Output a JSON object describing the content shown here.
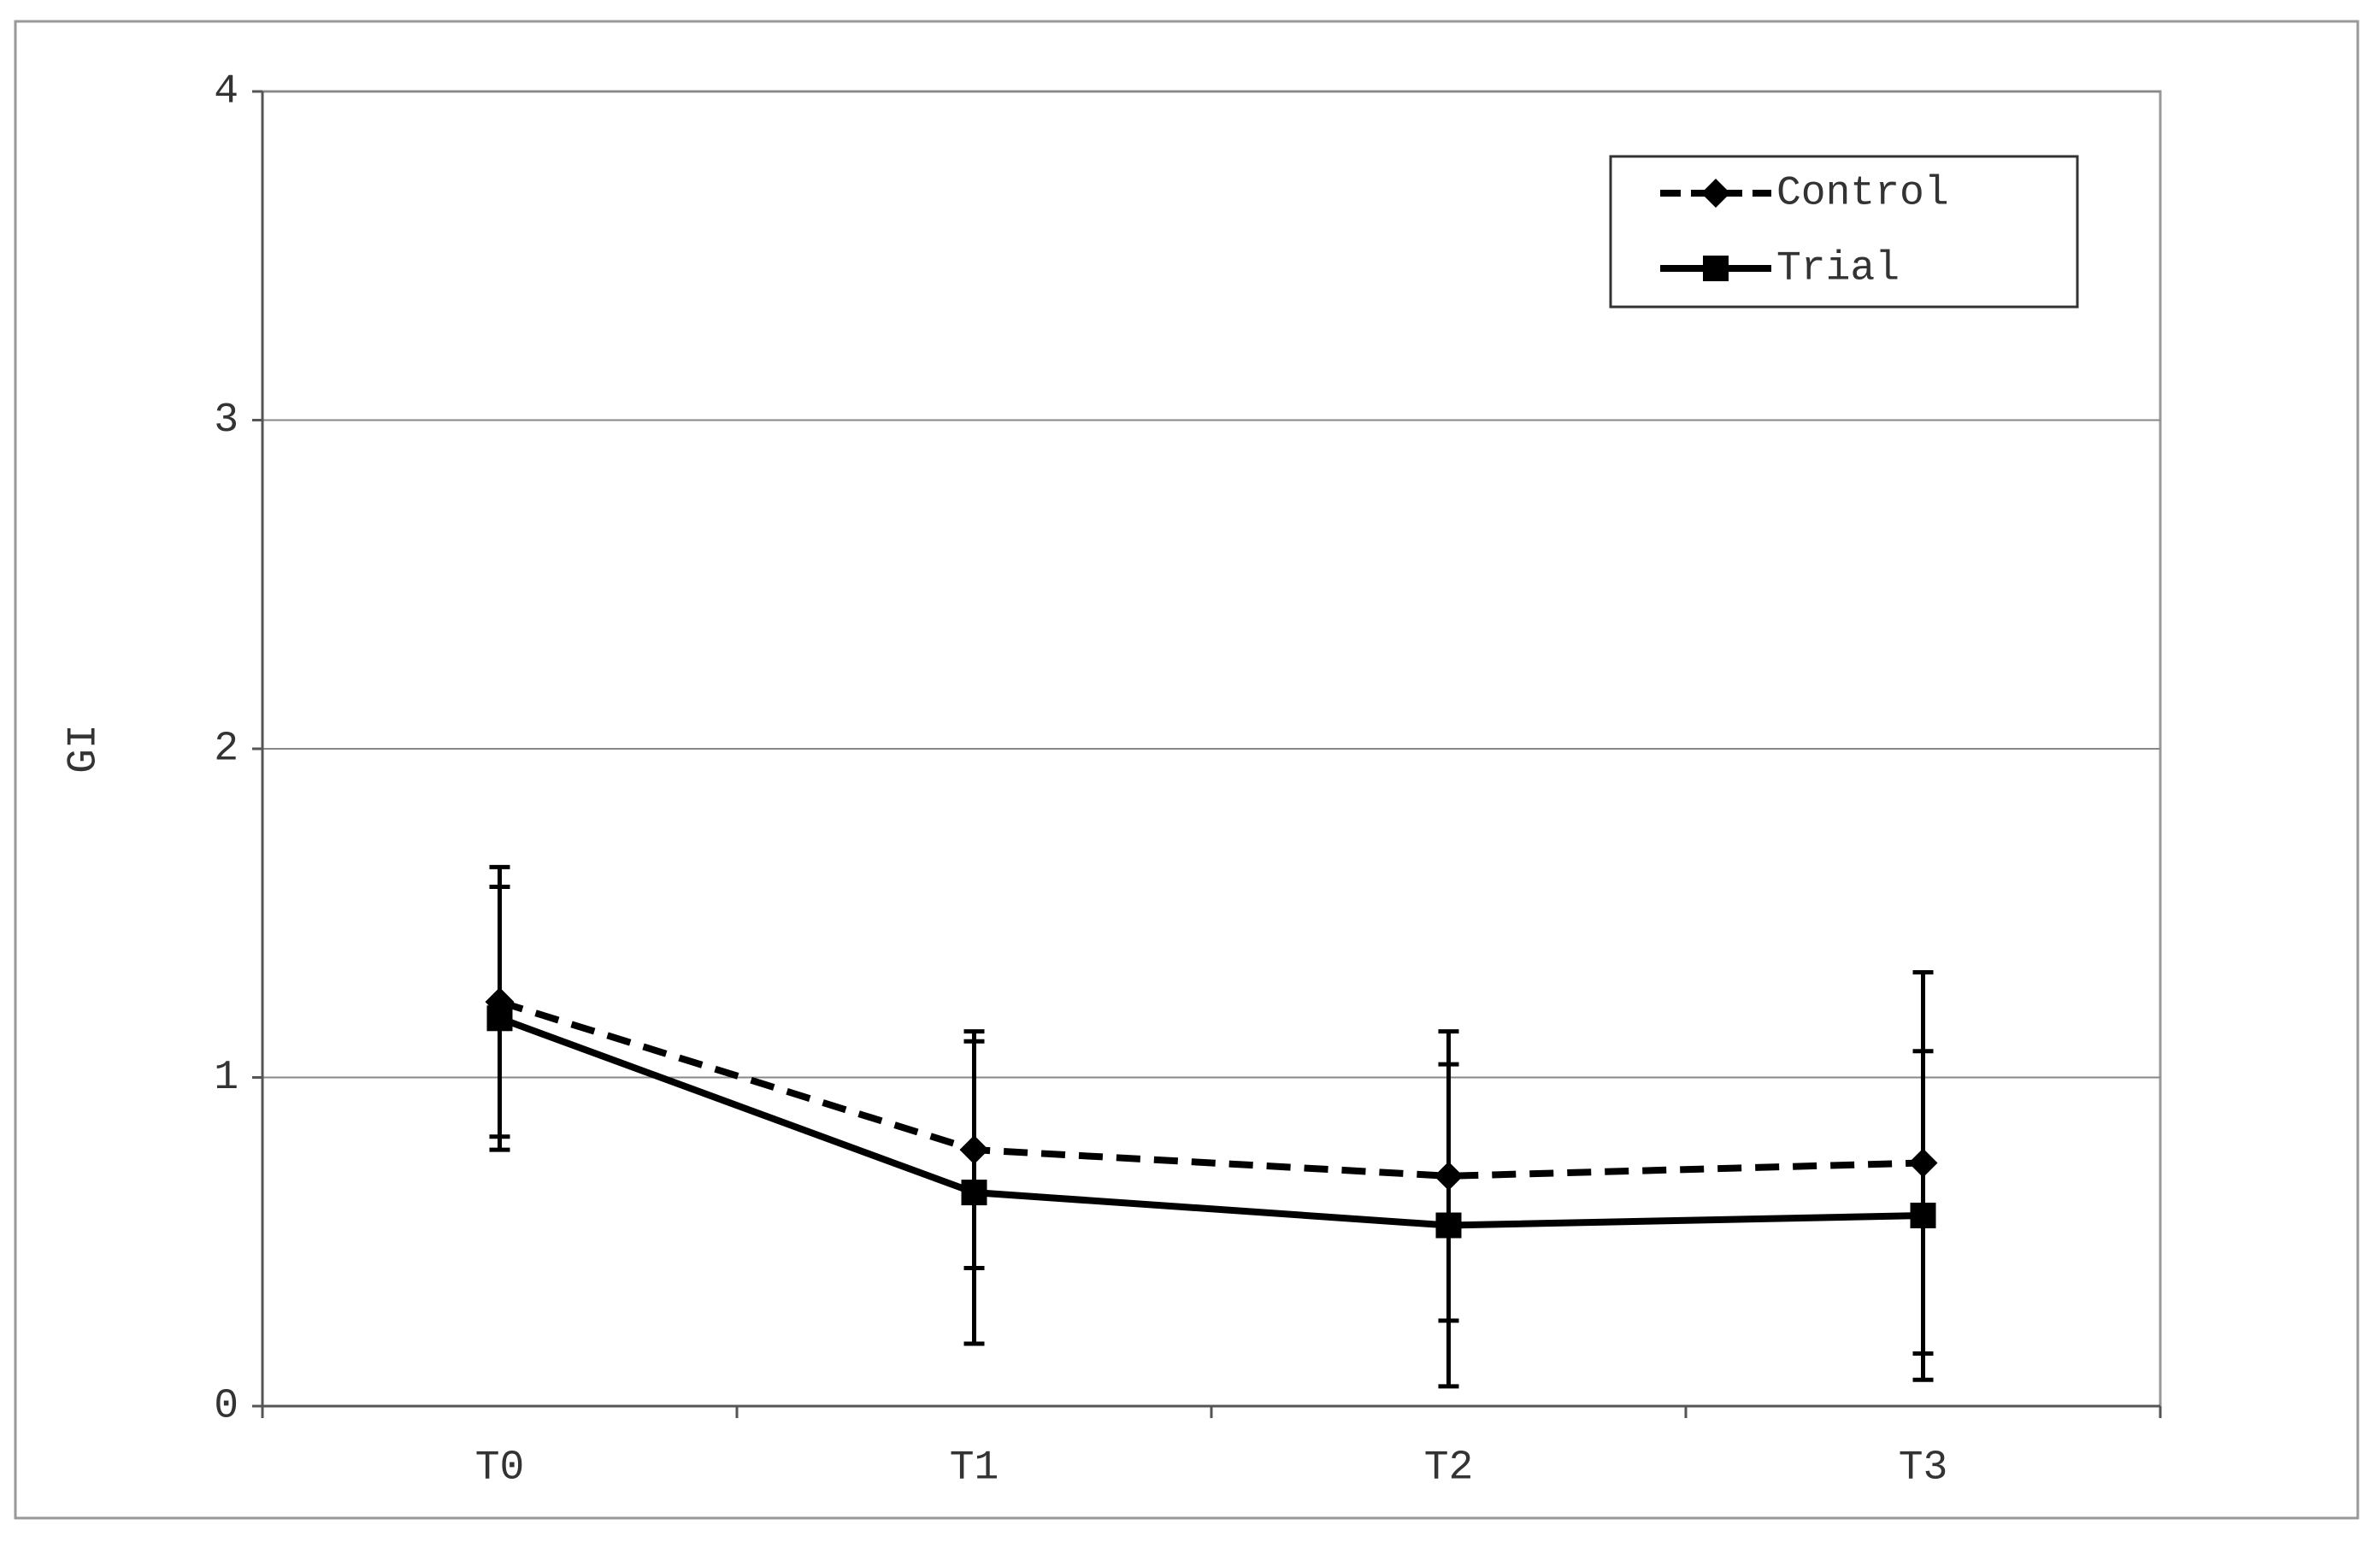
{
  "chart_data": {
    "type": "line",
    "y_label": "GI",
    "categories": [
      "T0",
      "T1",
      "T2",
      "T3"
    ],
    "series": [
      {
        "name": "Control",
        "color": "#000000",
        "line_style": "dashed",
        "marker": "diamond",
        "values": [
          1.23,
          0.78,
          0.7,
          0.74
        ],
        "errors": [
          0.41,
          0.36,
          0.44,
          0.58
        ]
      },
      {
        "name": "Trial",
        "color": "#000000",
        "line_style": "solid",
        "marker": "square",
        "values": [
          1.18,
          0.65,
          0.55,
          0.58
        ],
        "errors": [
          0.4,
          0.46,
          0.49,
          0.5
        ]
      }
    ],
    "ylim": [
      0,
      4
    ],
    "yticks": [
      0,
      1,
      2,
      3,
      4
    ],
    "grid": true,
    "legend": "top-right"
  }
}
